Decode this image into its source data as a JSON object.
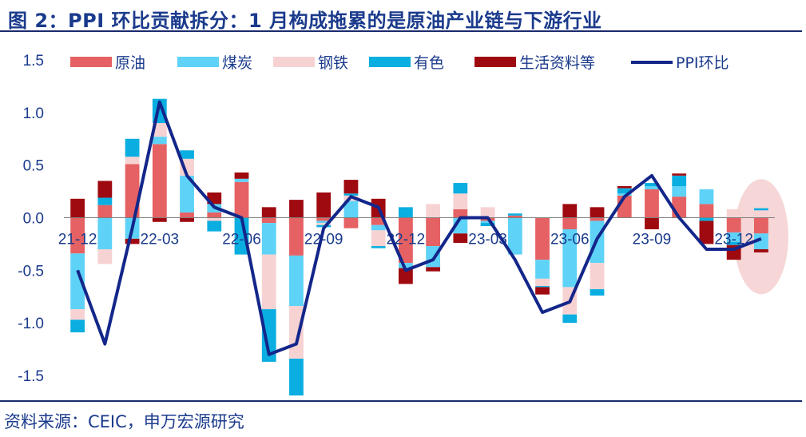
{
  "title": "图 2：PPI 环比贡献拆分：1 月构成拖累的是原油产业链与下游行业",
  "source": "资料来源：CEIC，申万宏源研究",
  "chart_data": {
    "type": "bar",
    "stacked": true,
    "legend_position": "top",
    "grid": false,
    "ylim": [
      -1.5,
      1.5
    ],
    "yticks": [
      "1.5",
      "1.0",
      "0.5",
      "0.0",
      "-0.5",
      "-1.0",
      "-1.5"
    ],
    "ytick_values": [
      1.5,
      1.0,
      0.5,
      0.0,
      -0.5,
      -1.0,
      -1.5
    ],
    "categories": [
      "21-12",
      "22-01",
      "22-02",
      "22-03",
      "22-04",
      "22-05",
      "22-06",
      "22-07",
      "22-08",
      "22-09",
      "22-10",
      "22-11",
      "22-12",
      "23-01",
      "23-02",
      "23-03",
      "23-04",
      "23-05",
      "23-06",
      "23-07",
      "23-08",
      "23-09",
      "23-10",
      "23-11",
      "23-12",
      "24-01"
    ],
    "xtick_labels": [
      {
        "index": 0,
        "label": "21-12"
      },
      {
        "index": 3,
        "label": "22-03"
      },
      {
        "index": 6,
        "label": "22-06"
      },
      {
        "index": 9,
        "label": "22-09"
      },
      {
        "index": 12,
        "label": "22-12"
      },
      {
        "index": 15,
        "label": "23-03"
      },
      {
        "index": 18,
        "label": "23-06"
      },
      {
        "index": 21,
        "label": "23-09"
      },
      {
        "index": 24,
        "label": "23-12"
      }
    ],
    "series": [
      {
        "name": "原油",
        "color": "#e56163",
        "values": [
          -0.34,
          0.12,
          0.51,
          0.7,
          0.05,
          0.05,
          0.34,
          -0.05,
          -0.36,
          -0.03,
          -0.1,
          -0.07,
          -0.43,
          -0.27,
          0.08,
          -0.03,
          0.02,
          -0.4,
          -0.11,
          -0.03,
          0.21,
          0.27,
          0.2,
          0.13,
          -0.14,
          -0.15
        ]
      },
      {
        "name": "煤炭",
        "color": "#5ed2f7",
        "values": [
          -0.53,
          -0.3,
          -0.2,
          0.07,
          0.35,
          0.08,
          0.03,
          -0.3,
          -0.48,
          -0.02,
          0.16,
          -0.05,
          -0.05,
          -0.2,
          -0.15,
          -0.02,
          -0.35,
          -0.18,
          -0.55,
          -0.4,
          0.02,
          0.03,
          0.1,
          0.14,
          -0.09,
          -0.15
        ]
      },
      {
        "name": "钢铁",
        "color": "#f7d2d3",
        "values": [
          -0.1,
          -0.14,
          0.07,
          0.13,
          0.16,
          -0.03,
          0.0,
          -0.52,
          -0.5,
          -0.02,
          0.05,
          -0.15,
          0.0,
          0.13,
          0.15,
          0.1,
          0.0,
          -0.07,
          -0.26,
          -0.25,
          0.0,
          0.0,
          0.0,
          0.0,
          0.08,
          0.07
        ]
      },
      {
        "name": "有色",
        "color": "#0aaee0",
        "values": [
          -0.12,
          0.07,
          0.17,
          0.23,
          0.08,
          -0.1,
          -0.35,
          -0.5,
          -0.35,
          -0.02,
          0.02,
          -0.02,
          0.1,
          0.0,
          0.1,
          -0.03,
          0.02,
          -0.01,
          -0.08,
          -0.06,
          0.05,
          0.03,
          0.1,
          -0.03,
          -0.03,
          0.02
        ]
      },
      {
        "name": "生活资料等",
        "color": "#9e0a10",
        "values": [
          0.18,
          0.16,
          -0.05,
          -0.04,
          -0.04,
          0.11,
          0.06,
          0.1,
          0.17,
          0.24,
          0.13,
          0.18,
          -0.15,
          -0.04,
          -0.09,
          0.0,
          0.0,
          -0.07,
          0.13,
          0.1,
          0.02,
          -0.11,
          0.02,
          -0.22,
          -0.14,
          -0.03
        ]
      }
    ],
    "line": {
      "name": "PPI环比",
      "color": "#13268a",
      "values": [
        -0.5,
        -1.2,
        -0.1,
        1.1,
        0.4,
        0.1,
        0.0,
        -1.3,
        -1.2,
        -0.1,
        0.2,
        0.1,
        -0.5,
        -0.4,
        0.0,
        0.0,
        -0.4,
        -0.9,
        -0.8,
        -0.2,
        0.2,
        0.4,
        0.0,
        -0.3,
        -0.3,
        -0.2
      ]
    },
    "highlight": {
      "type": "ellipse",
      "category_index": 25,
      "color": "#f6d6d6"
    }
  }
}
